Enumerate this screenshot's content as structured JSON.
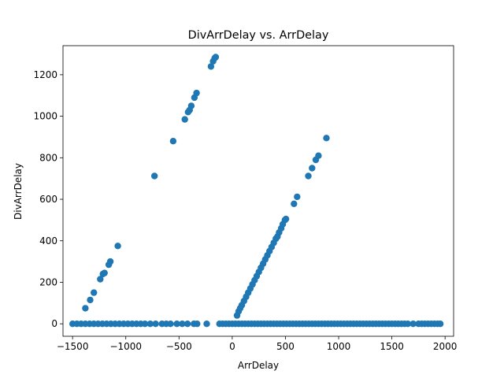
{
  "chart_data": {
    "type": "scatter",
    "title": "DivArrDelay vs. ArrDelay",
    "xlabel": "ArrDelay",
    "ylabel": "DivArrDelay",
    "xlim": [
      -1590,
      2080
    ],
    "ylim": [
      -60,
      1340
    ],
    "xticks": [
      -1500,
      -1000,
      -500,
      0,
      500,
      1000,
      1500,
      2000
    ],
    "yticks": [
      0,
      200,
      400,
      600,
      800,
      1000,
      1200
    ],
    "grid": false,
    "legend": "none",
    "marker_color": "#1f77b4",
    "series": [
      {
        "points": [
          [
            -1380,
            75
          ],
          [
            -1335,
            115
          ],
          [
            -1300,
            150
          ],
          [
            -1240,
            215
          ],
          [
            -1215,
            240
          ],
          [
            -1200,
            245
          ],
          [
            -1160,
            285
          ],
          [
            -1145,
            300
          ],
          [
            -1075,
            375
          ],
          [
            -730,
            712
          ],
          [
            -555,
            880
          ],
          [
            -445,
            985
          ],
          [
            -415,
            1020
          ],
          [
            -400,
            1030
          ],
          [
            -385,
            1050
          ],
          [
            -355,
            1090
          ],
          [
            -335,
            1112
          ],
          [
            -200,
            1240
          ],
          [
            -180,
            1265
          ],
          [
            -165,
            1280
          ],
          [
            -155,
            1285
          ],
          [
            45,
            40
          ],
          [
            60,
            60
          ],
          [
            75,
            75
          ],
          [
            90,
            90
          ],
          [
            110,
            110
          ],
          [
            130,
            130
          ],
          [
            150,
            150
          ],
          [
            170,
            170
          ],
          [
            190,
            190
          ],
          [
            210,
            210
          ],
          [
            230,
            230
          ],
          [
            250,
            250
          ],
          [
            270,
            270
          ],
          [
            290,
            290
          ],
          [
            310,
            310
          ],
          [
            330,
            330
          ],
          [
            350,
            350
          ],
          [
            370,
            370
          ],
          [
            390,
            390
          ],
          [
            410,
            410
          ],
          [
            425,
            420
          ],
          [
            440,
            440
          ],
          [
            460,
            460
          ],
          [
            475,
            480
          ],
          [
            495,
            500
          ],
          [
            505,
            505
          ],
          [
            580,
            578
          ],
          [
            610,
            612
          ],
          [
            715,
            712
          ],
          [
            750,
            750
          ],
          [
            785,
            790
          ],
          [
            810,
            810
          ],
          [
            885,
            895
          ],
          [
            -1500,
            0
          ],
          [
            -1460,
            0
          ],
          [
            -1420,
            0
          ],
          [
            -1380,
            0
          ],
          [
            -1340,
            0
          ],
          [
            -1300,
            0
          ],
          [
            -1260,
            0
          ],
          [
            -1220,
            0
          ],
          [
            -1180,
            0
          ],
          [
            -1140,
            0
          ],
          [
            -1100,
            0
          ],
          [
            -1060,
            0
          ],
          [
            -1020,
            0
          ],
          [
            -980,
            0
          ],
          [
            -940,
            0
          ],
          [
            -900,
            0
          ],
          [
            -860,
            0
          ],
          [
            -820,
            0
          ],
          [
            -770,
            0
          ],
          [
            -720,
            0
          ],
          [
            -660,
            0
          ],
          [
            -620,
            0
          ],
          [
            -580,
            0
          ],
          [
            -520,
            0
          ],
          [
            -470,
            0
          ],
          [
            -420,
            0
          ],
          [
            -360,
            0
          ],
          [
            -330,
            0
          ],
          [
            -240,
            0
          ],
          [
            -120,
            0
          ],
          [
            -90,
            0
          ],
          [
            -60,
            0
          ],
          [
            -30,
            0
          ],
          [
            0,
            0
          ],
          [
            30,
            0
          ],
          [
            60,
            0
          ],
          [
            90,
            0
          ],
          [
            120,
            0
          ],
          [
            150,
            0
          ],
          [
            180,
            0
          ],
          [
            210,
            0
          ],
          [
            240,
            0
          ],
          [
            270,
            0
          ],
          [
            300,
            0
          ],
          [
            330,
            0
          ],
          [
            360,
            0
          ],
          [
            390,
            0
          ],
          [
            420,
            0
          ],
          [
            450,
            0
          ],
          [
            480,
            0
          ],
          [
            510,
            0
          ],
          [
            540,
            0
          ],
          [
            570,
            0
          ],
          [
            600,
            0
          ],
          [
            630,
            0
          ],
          [
            660,
            0
          ],
          [
            690,
            0
          ],
          [
            720,
            0
          ],
          [
            750,
            0
          ],
          [
            780,
            0
          ],
          [
            810,
            0
          ],
          [
            840,
            0
          ],
          [
            870,
            0
          ],
          [
            900,
            0
          ],
          [
            930,
            0
          ],
          [
            960,
            0
          ],
          [
            990,
            0
          ],
          [
            1020,
            0
          ],
          [
            1050,
            0
          ],
          [
            1080,
            0
          ],
          [
            1110,
            0
          ],
          [
            1140,
            0
          ],
          [
            1170,
            0
          ],
          [
            1200,
            0
          ],
          [
            1230,
            0
          ],
          [
            1260,
            0
          ],
          [
            1290,
            0
          ],
          [
            1320,
            0
          ],
          [
            1350,
            0
          ],
          [
            1380,
            0
          ],
          [
            1410,
            0
          ],
          [
            1440,
            0
          ],
          [
            1470,
            0
          ],
          [
            1500,
            0
          ],
          [
            1530,
            0
          ],
          [
            1560,
            0
          ],
          [
            1590,
            0
          ],
          [
            1620,
            0
          ],
          [
            1650,
            0
          ],
          [
            1700,
            0
          ],
          [
            1750,
            0
          ],
          [
            1780,
            0
          ],
          [
            1810,
            0
          ],
          [
            1840,
            0
          ],
          [
            1870,
            0
          ],
          [
            1900,
            0
          ],
          [
            1930,
            0
          ],
          [
            1955,
            0
          ]
        ]
      }
    ]
  }
}
